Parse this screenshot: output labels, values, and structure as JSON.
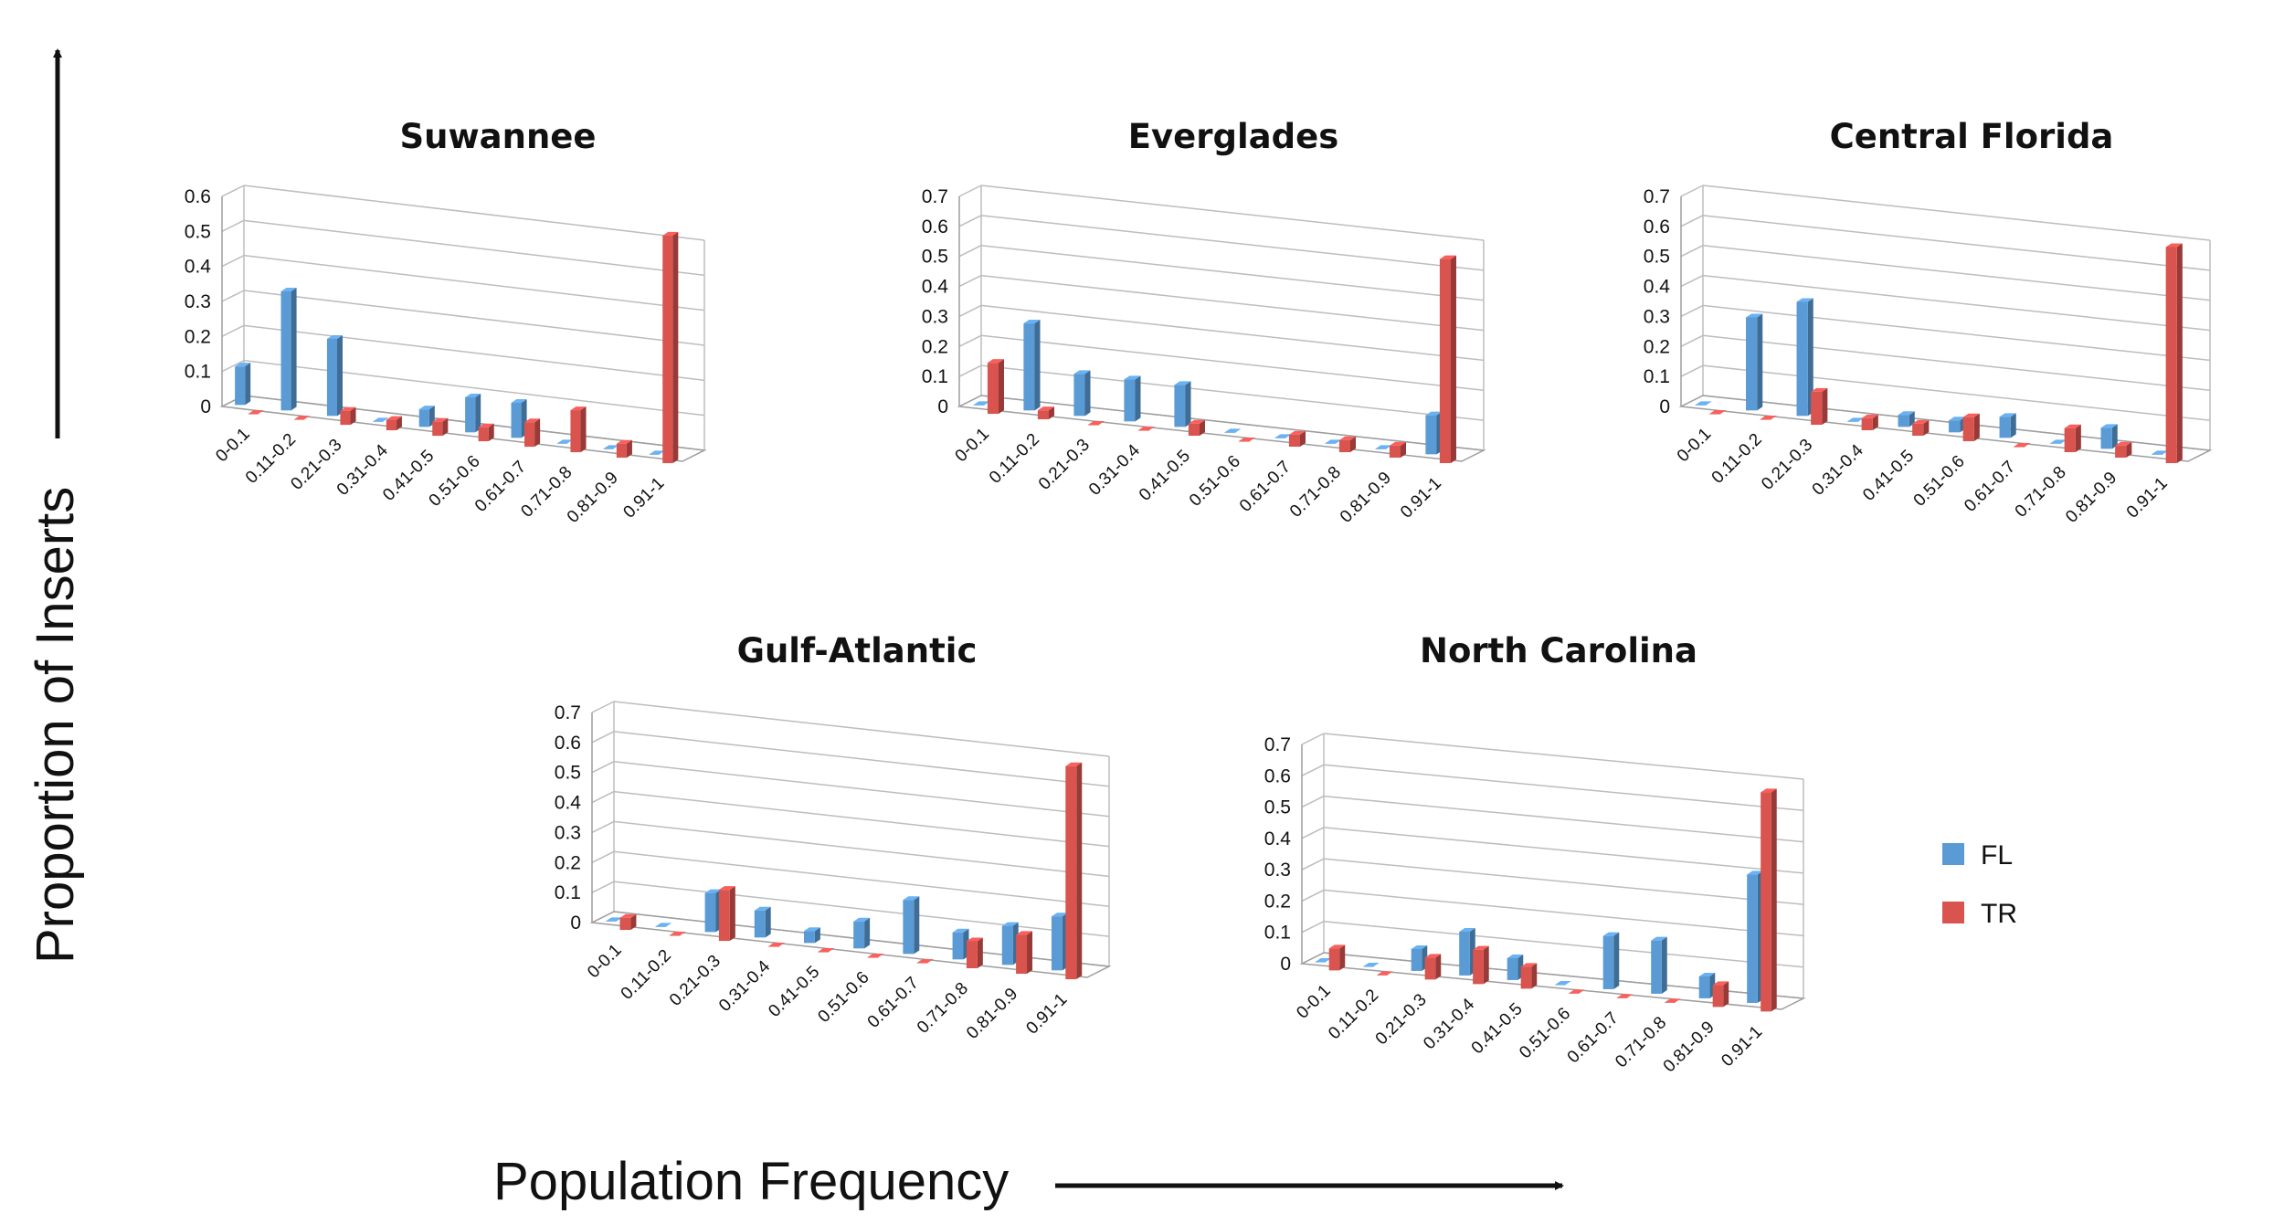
{
  "figure": {
    "ylabel": "Proportion of Inserts",
    "xlabel": "Population Frequency"
  },
  "legend": {
    "placement": "right",
    "items": [
      {
        "label": "FL",
        "color": "#5b9bd5"
      },
      {
        "label": "TR",
        "color": "#d9534f"
      }
    ]
  },
  "colors": {
    "FL": "#5b9bd5",
    "TR": "#d9534f"
  },
  "chart_data": [
    {
      "type": "bar",
      "title": "Suwannee",
      "categories": [
        "0-0.1",
        "0.11-0.2",
        "0.21-0.3",
        "0.31-0.4",
        "0.41-0.5",
        "0.51-0.6",
        "0.61-0.7",
        "0.71-0.8",
        "0.81-0.9",
        "0.91-1"
      ],
      "ylim": [
        0,
        0.6
      ],
      "yticks": [
        "0",
        "0.1",
        "0.2",
        "0.3",
        "0.4",
        "0.5",
        "0.6"
      ],
      "grid": true,
      "series": [
        {
          "name": "FL",
          "values": [
            0.11,
            0.34,
            0.22,
            0.0,
            0.05,
            0.1,
            0.1,
            0.0,
            0.0,
            0.0
          ]
        },
        {
          "name": "TR",
          "values": [
            0.0,
            0.0,
            0.04,
            0.03,
            0.04,
            0.04,
            0.07,
            0.12,
            0.04,
            0.65
          ]
        }
      ]
    },
    {
      "type": "bar",
      "title": "Everglades",
      "categories": [
        "0-0.1",
        "0.11-0.2",
        "0.21-0.3",
        "0.31-0.4",
        "0.41-0.5",
        "0.51-0.6",
        "0.61-0.7",
        "0.71-0.8",
        "0.81-0.9",
        "0.91-1"
      ],
      "ylim": [
        0,
        0.7
      ],
      "yticks": [
        "0",
        "0.1",
        "0.2",
        "0.3",
        "0.4",
        "0.5",
        "0.6",
        "0.7"
      ],
      "grid": true,
      "series": [
        {
          "name": "FL",
          "values": [
            0.0,
            0.29,
            0.14,
            0.14,
            0.14,
            0.0,
            0.0,
            0.0,
            0.0,
            0.13
          ]
        },
        {
          "name": "TR",
          "values": [
            0.17,
            0.03,
            0.0,
            0.0,
            0.04,
            0.0,
            0.04,
            0.04,
            0.04,
            0.68
          ]
        }
      ]
    },
    {
      "type": "bar",
      "title": "Central Florida",
      "categories": [
        "0-0.1",
        "0.11-0.2",
        "0.21-0.3",
        "0.31-0.4",
        "0.41-0.5",
        "0.51-0.6",
        "0.61-0.7",
        "0.71-0.8",
        "0.81-0.9",
        "0.91-1"
      ],
      "ylim": [
        0,
        0.7
      ],
      "yticks": [
        "0",
        "0.1",
        "0.2",
        "0.3",
        "0.4",
        "0.5",
        "0.6",
        "0.7"
      ],
      "grid": true,
      "series": [
        {
          "name": "FL",
          "values": [
            0.0,
            0.31,
            0.38,
            0.0,
            0.04,
            0.04,
            0.07,
            0.0,
            0.07,
            0.0
          ]
        },
        {
          "name": "TR",
          "values": [
            0.0,
            0.0,
            0.11,
            0.04,
            0.04,
            0.08,
            0.0,
            0.08,
            0.04,
            0.72
          ]
        }
      ]
    },
    {
      "type": "bar",
      "title": "Gulf-Atlantic",
      "categories": [
        "0-0.1",
        "0.11-0.2",
        "0.21-0.3",
        "0.31-0.4",
        "0.41-0.5",
        "0.51-0.6",
        "0.61-0.7",
        "0.71-0.8",
        "0.81-0.9",
        "0.91-1"
      ],
      "ylim": [
        0,
        0.7
      ],
      "yticks": [
        "0",
        "0.1",
        "0.2",
        "0.3",
        "0.4",
        "0.5",
        "0.6",
        "0.7"
      ],
      "grid": true,
      "series": [
        {
          "name": "FL",
          "values": [
            0.0,
            0.0,
            0.13,
            0.09,
            0.04,
            0.09,
            0.18,
            0.09,
            0.13,
            0.18
          ]
        },
        {
          "name": "TR",
          "values": [
            0.04,
            0.0,
            0.17,
            0.0,
            0.0,
            0.0,
            0.0,
            0.09,
            0.13,
            0.71
          ]
        }
      ]
    },
    {
      "type": "bar",
      "title": "North Carolina",
      "categories": [
        "0-0.1",
        "0.11-0.2",
        "0.21-0.3",
        "0.31-0.4",
        "0.41-0.5",
        "0.51-0.6",
        "0.61-0.7",
        "0.71-0.8",
        "0.81-0.9",
        "0.91-1"
      ],
      "ylim": [
        0,
        0.7
      ],
      "yticks": [
        "0",
        "0.1",
        "0.2",
        "0.3",
        "0.4",
        "0.5",
        "0.6",
        "0.7"
      ],
      "grid": true,
      "series": [
        {
          "name": "FL",
          "values": [
            0.0,
            0.0,
            0.07,
            0.14,
            0.07,
            0.0,
            0.17,
            0.17,
            0.07,
            0.41
          ]
        },
        {
          "name": "TR",
          "values": [
            0.07,
            0.0,
            0.07,
            0.11,
            0.07,
            0.0,
            0.0,
            0.0,
            0.07,
            0.7
          ]
        }
      ]
    }
  ]
}
